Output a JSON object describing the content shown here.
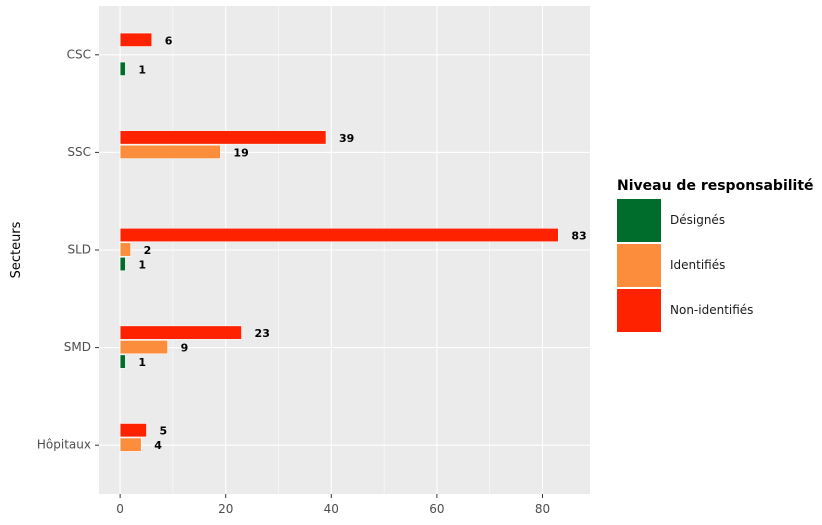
{
  "chart_data": {
    "type": "bar",
    "orientation": "horizontal",
    "title": "",
    "xlabel": "",
    "ylabel": "Secteurs",
    "categories": [
      "CSC",
      "SSC",
      "SLD",
      "SMD",
      "Hôpitaux"
    ],
    "series": [
      {
        "name": "Désignés",
        "color": "#006d2c",
        "values": [
          1,
          null,
          1,
          1,
          null
        ]
      },
      {
        "name": "Identifiés",
        "color": "#fc8d3d",
        "values": [
          null,
          19,
          2,
          9,
          4
        ]
      },
      {
        "name": "Non-identifiés",
        "color": "#ff2200",
        "values": [
          6,
          39,
          83,
          23,
          5
        ]
      }
    ],
    "xlim": [
      -4,
      89
    ],
    "xticks": [
      0,
      20,
      40,
      60,
      80
    ],
    "grid": true,
    "legend": {
      "title": "Niveau de responsabilité",
      "position": "right"
    }
  }
}
